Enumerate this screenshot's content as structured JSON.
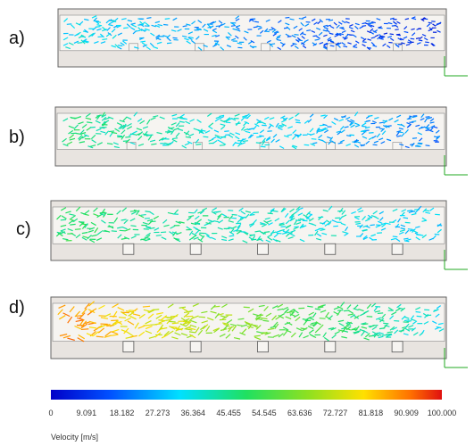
{
  "panels": [
    {
      "label": "a)"
    },
    {
      "label": "b)"
    },
    {
      "label": "c)"
    },
    {
      "label": "d)"
    }
  ],
  "colorbar": {
    "label": "Velocity [m/s]",
    "ticks": [
      0,
      9.091,
      18.182,
      27.273,
      36.364,
      45.455,
      54.545,
      63.636,
      72.727,
      81.818,
      90.909,
      {
        "value": 100,
        "label": "100.000"
      }
    ]
  }
}
